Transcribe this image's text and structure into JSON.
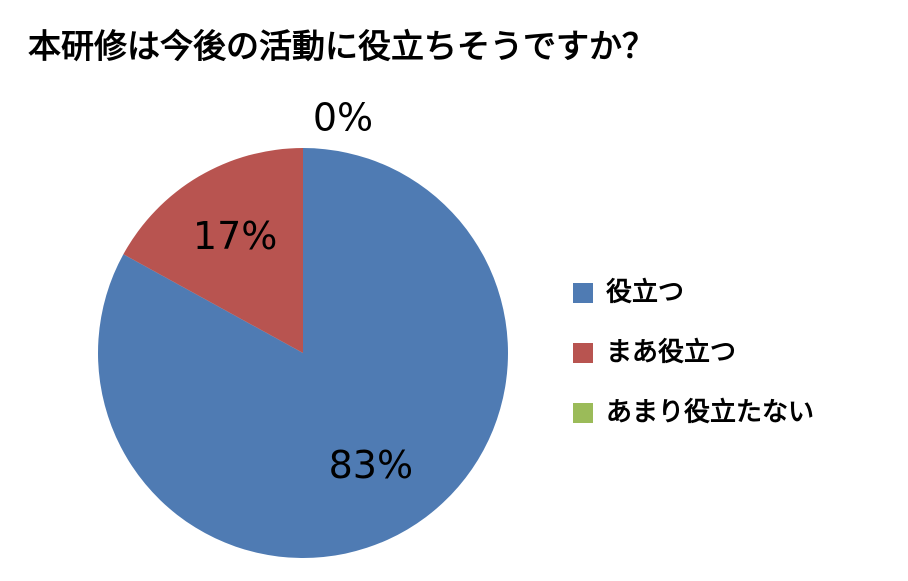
{
  "chart_data": {
    "type": "pie",
    "title": "本研修は今後の活動に役立ちそうですか？",
    "categories": [
      "役立つ",
      "まあ役立つ",
      "あまり役立たない"
    ],
    "values": [
      83,
      17,
      0
    ],
    "value_labels": [
      "83%",
      "17%",
      "0%"
    ],
    "colors": [
      "#4f7bb3",
      "#b85450",
      "#9bbb59"
    ],
    "legend": "right"
  }
}
